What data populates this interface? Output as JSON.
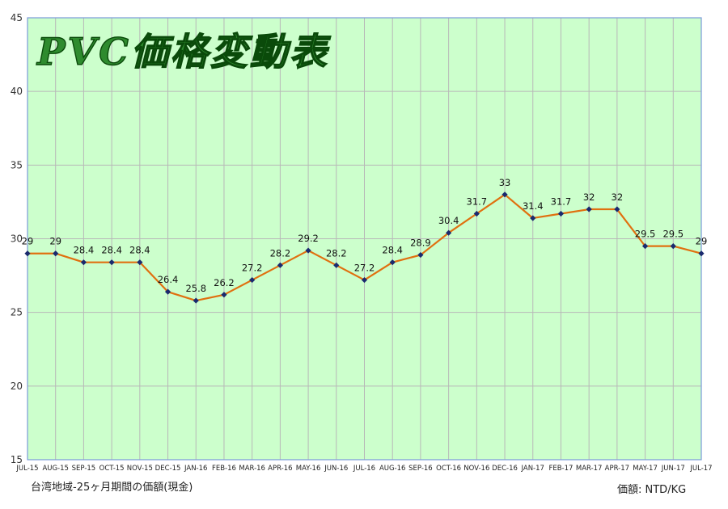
{
  "chart_data": {
    "type": "line",
    "title": "PVC価格変動表",
    "categories": [
      "JUL-15",
      "AUG-15",
      "SEP-15",
      "OCT-15",
      "NOV-15",
      "DEC-15",
      "JAN-16",
      "FEB-16",
      "MAR-16",
      "APR-16",
      "MAY-16",
      "JUN-16",
      "JUL-16",
      "AUG-16",
      "SEP-16",
      "OCT-16",
      "NOV-16",
      "DEC-16",
      "JAN-17",
      "FEB-17",
      "MAR-17",
      "APR-17",
      "MAY-17",
      "JUN-17",
      "JUL-17"
    ],
    "values": [
      29,
      29,
      28.4,
      28.4,
      28.4,
      26.4,
      25.8,
      26.2,
      27.2,
      28.2,
      29.2,
      28.2,
      27.2,
      28.4,
      28.9,
      30.4,
      31.7,
      33,
      31.4,
      31.7,
      32,
      32,
      29.5,
      29.5,
      29
    ],
    "data_labels": [
      "29",
      "29",
      "28.4",
      "28.4",
      "28.4",
      "26.4",
      "25.8",
      "26.2",
      "27.2",
      "28.2",
      "29.2",
      "28.2",
      "27.2",
      "28.4",
      "28.9",
      "30.4",
      "31.7",
      "33",
      "31.4",
      "31.7",
      "32",
      "32",
      "29.5",
      "29.5",
      "29"
    ],
    "ylim": [
      15,
      45
    ],
    "yticks": [
      15,
      20,
      25,
      30,
      35,
      40,
      45
    ],
    "grid": true,
    "legend": "none",
    "colors": {
      "plot_background": "#ccffcc",
      "grid": "#b8b8b8",
      "line": "#e07010",
      "marker": "#1a2a6e",
      "title_fill": "#2e8b2e",
      "title_stroke": "#0a4a0a"
    }
  },
  "footnotes": {
    "left": "台湾地域-25ヶ月期間の価額(現金)",
    "right": "価額: NTD/KG"
  }
}
